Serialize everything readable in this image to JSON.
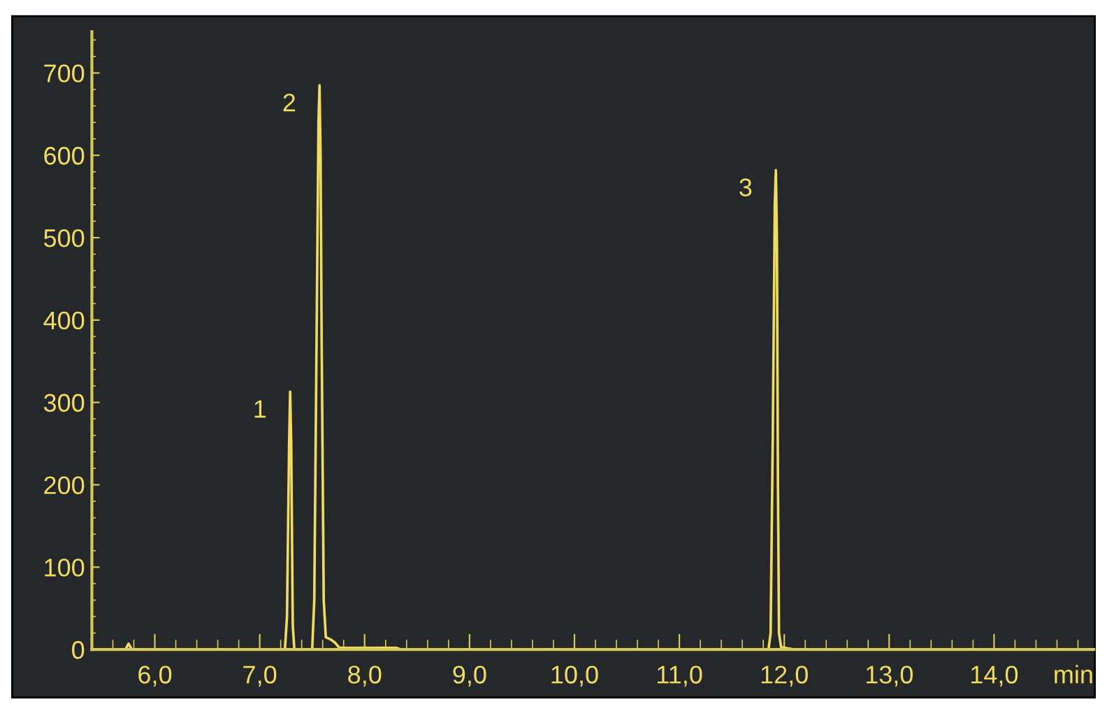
{
  "chart_data": {
    "type": "line",
    "xlabel": "min",
    "x": [
      5.4,
      5.72,
      5.75,
      5.78,
      7.24,
      7.26,
      7.28,
      7.29,
      7.3,
      7.315,
      7.33,
      7.5,
      7.52,
      7.54,
      7.56,
      7.57,
      7.58,
      7.59,
      7.61,
      7.63,
      7.68,
      7.72,
      7.76,
      7.85,
      8.3,
      8.35,
      11.85,
      11.87,
      11.89,
      11.91,
      11.92,
      11.93,
      11.94,
      11.95,
      11.97,
      12.1,
      14.95
    ],
    "series": [
      {
        "color": "#f2dc5c",
        "values": [
          0,
          0,
          7,
          0,
          0,
          40,
          250,
          313,
          250,
          30,
          0,
          0,
          60,
          350,
          640,
          685,
          600,
          380,
          60,
          15,
          12,
          8,
          2,
          2,
          2,
          0,
          0,
          20,
          250,
          540,
          582,
          500,
          200,
          20,
          3,
          0,
          0
        ]
      }
    ],
    "xlim": [
      5.4,
      14.95
    ],
    "ylim": [
      0,
      750
    ],
    "xticks": [
      {
        "value": 6,
        "label": "6,0"
      },
      {
        "value": 7,
        "label": "7,0"
      },
      {
        "value": 8,
        "label": "8,0"
      },
      {
        "value": 9,
        "label": "9,0"
      },
      {
        "value": 10,
        "label": "10,0"
      },
      {
        "value": 11,
        "label": "11,0"
      },
      {
        "value": 12,
        "label": "12,0"
      },
      {
        "value": 13,
        "label": "13,0"
      },
      {
        "value": 14,
        "label": "14,0"
      }
    ],
    "yticks": [
      0,
      100,
      200,
      300,
      400,
      500,
      600,
      700
    ],
    "annotations": [
      {
        "text": "1",
        "x": 7.29,
        "y": 313
      },
      {
        "text": "2",
        "x": 7.57,
        "y": 685
      },
      {
        "text": "3",
        "x": 11.92,
        "y": 582
      }
    ],
    "grid": false,
    "legend": false,
    "marker": "none",
    "line_style": "solid"
  }
}
